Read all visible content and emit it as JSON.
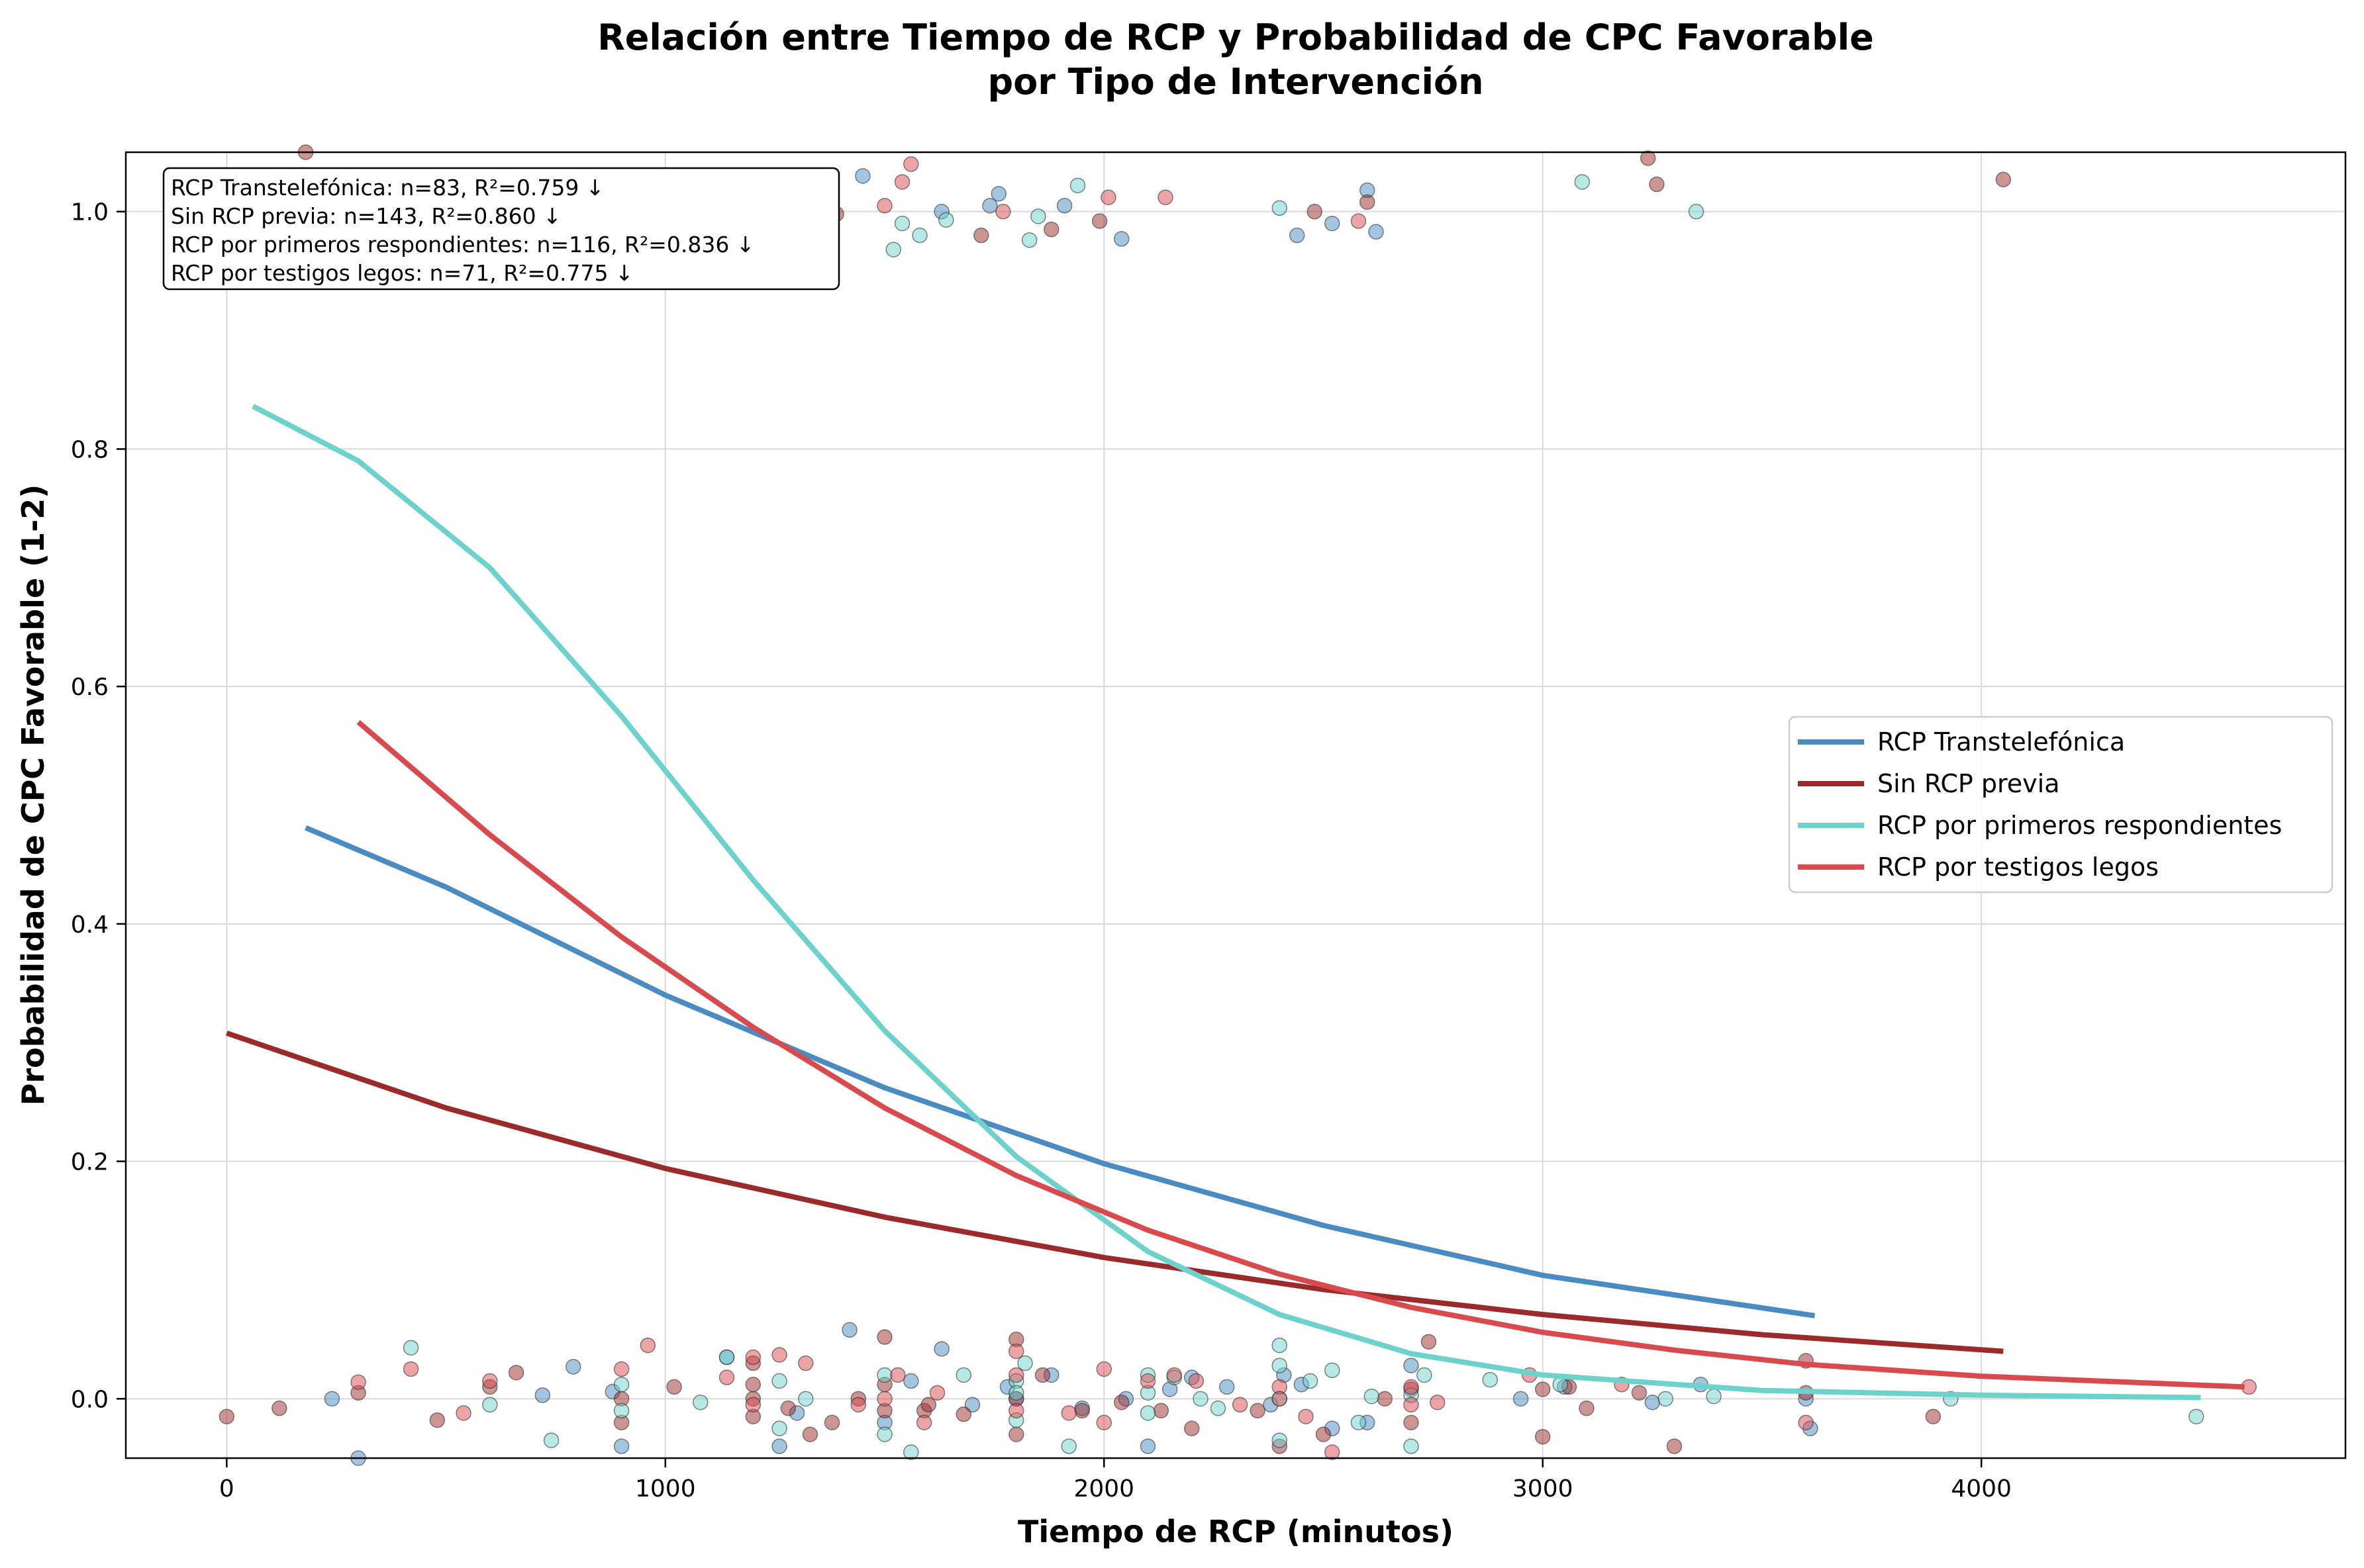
{
  "chart_data": {
    "type": "scatter",
    "title": [
      "Relación entre Tiempo de RCP y Probabilidad de CPC Favorable",
      "por Tipo de Intervención"
    ],
    "xlabel": "Tiempo de RCP (minutos)",
    "ylabel": "Probabilidad de CPC Favorable (1-2)",
    "xlim": [
      -230,
      4830
    ],
    "ylim": [
      -0.05,
      1.05
    ],
    "xticks": [
      0,
      1000,
      2000,
      3000,
      4000
    ],
    "xtick_labels": [
      "0",
      "1000",
      "2000",
      "3000",
      "4000"
    ],
    "yticks": [
      0.0,
      0.2,
      0.4,
      0.6,
      0.8,
      1.0
    ],
    "ytick_labels": [
      "0.0",
      "0.2",
      "0.4",
      "0.6",
      "0.8",
      "1.0"
    ],
    "grid": true,
    "legend_position": "center-right",
    "annotation_box": [
      "RCP Transtelefónica: n=83, R²=0.759 ↓",
      "Sin RCP previa: n=143, R²=0.860 ↓",
      "RCP por primeros respondientes: n=116, R²=0.836 ↓",
      "RCP por testigos legos: n=71, R²=0.775 ↓"
    ],
    "series": [
      {
        "name": "RCP Transtelefónica",
        "color": "#4a8bc2",
        "curve": [
          [
            180,
            0.481
          ],
          [
            500,
            0.431
          ],
          [
            1000,
            0.34
          ],
          [
            1500,
            0.262
          ],
          [
            2000,
            0.198
          ],
          [
            2500,
            0.146
          ],
          [
            3000,
            0.104
          ],
          [
            3620,
            0.07
          ]
        ],
        "points_high": [
          [
            1450,
            1.03
          ],
          [
            1630,
            1.0
          ],
          [
            1740,
            1.005
          ],
          [
            1760,
            1.015
          ],
          [
            1910,
            1.005
          ],
          [
            2040,
            0.977
          ],
          [
            2440,
            0.98
          ],
          [
            2520,
            0.99
          ],
          [
            2600,
            1.018
          ],
          [
            2620,
            0.983
          ],
          [
            900,
            1.0
          ],
          [
            1060,
            1.012
          ]
        ],
        "points_low": [
          [
            240,
            0.0
          ],
          [
            300,
            -0.05
          ],
          [
            720,
            0.003
          ],
          [
            790,
            0.027
          ],
          [
            880,
            0.006
          ],
          [
            900,
            -0.04
          ],
          [
            1140,
            0.035
          ],
          [
            1260,
            -0.04
          ],
          [
            1300,
            -0.012
          ],
          [
            1500,
            -0.02
          ],
          [
            1560,
            0.015
          ],
          [
            1630,
            0.042
          ],
          [
            1700,
            -0.005
          ],
          [
            1780,
            0.01
          ],
          [
            1800,
            0.0
          ],
          [
            1880,
            0.02
          ],
          [
            1950,
            -0.008
          ],
          [
            2050,
            0.0
          ],
          [
            2100,
            -0.04
          ],
          [
            2150,
            0.008
          ],
          [
            2200,
            0.018
          ],
          [
            2280,
            0.01
          ],
          [
            2380,
            -0.005
          ],
          [
            2410,
            0.02
          ],
          [
            2450,
            0.012
          ],
          [
            2520,
            -0.025
          ],
          [
            2700,
            0.028
          ],
          [
            2950,
            0.0
          ],
          [
            3050,
            0.01
          ],
          [
            3250,
            -0.003
          ],
          [
            3360,
            0.012
          ],
          [
            3600,
            0.0
          ],
          [
            3610,
            -0.025
          ],
          [
            1420,
            0.058
          ],
          [
            2600,
            -0.02
          ]
        ]
      },
      {
        "name": "Sin RCP previa",
        "color": "#9b2a2a",
        "curve": [
          [
            0,
            0.308
          ],
          [
            500,
            0.245
          ],
          [
            1000,
            0.194
          ],
          [
            1500,
            0.153
          ],
          [
            2000,
            0.119
          ],
          [
            2500,
            0.092
          ],
          [
            3000,
            0.071
          ],
          [
            3500,
            0.054
          ],
          [
            4050,
            0.04
          ]
        ],
        "points_high": [
          [
            180,
            1.05
          ],
          [
            360,
            1.03
          ],
          [
            600,
            1.03
          ],
          [
            1080,
            1.02
          ],
          [
            1390,
            0.998
          ],
          [
            1720,
            0.98
          ],
          [
            1880,
            0.985
          ],
          [
            1990,
            0.992
          ],
          [
            2480,
            1.0
          ],
          [
            2600,
            1.008
          ],
          [
            3240,
            1.045
          ],
          [
            3260,
            1.023
          ],
          [
            4050,
            1.027
          ]
        ],
        "points_low": [
          [
            0,
            -0.015
          ],
          [
            120,
            -0.008
          ],
          [
            300,
            0.005
          ],
          [
            480,
            -0.018
          ],
          [
            600,
            0.01
          ],
          [
            660,
            0.022
          ],
          [
            900,
            0.0
          ],
          [
            900,
            -0.02
          ],
          [
            1020,
            0.01
          ],
          [
            1200,
            0.0
          ],
          [
            1200,
            -0.015
          ],
          [
            1200,
            0.03
          ],
          [
            1200,
            0.012
          ],
          [
            1280,
            -0.008
          ],
          [
            1330,
            -0.03
          ],
          [
            1380,
            -0.02
          ],
          [
            1500,
            0.012
          ],
          [
            1500,
            -0.01
          ],
          [
            1500,
            0.052
          ],
          [
            1590,
            -0.01
          ],
          [
            1680,
            -0.013
          ],
          [
            1800,
            0.05
          ],
          [
            1800,
            0.0
          ],
          [
            1800,
            -0.03
          ],
          [
            1860,
            0.02
          ],
          [
            1950,
            -0.01
          ],
          [
            2040,
            -0.003
          ],
          [
            2130,
            -0.01
          ],
          [
            2200,
            -0.025
          ],
          [
            2350,
            -0.01
          ],
          [
            2400,
            -0.04
          ],
          [
            2500,
            -0.03
          ],
          [
            2640,
            0.0
          ],
          [
            2700,
            -0.02
          ],
          [
            2700,
            0.008
          ],
          [
            2740,
            0.048
          ],
          [
            3000,
            -0.032
          ],
          [
            3000,
            0.008
          ],
          [
            3060,
            0.01
          ],
          [
            3100,
            -0.008
          ],
          [
            3220,
            0.005
          ],
          [
            3300,
            -0.04
          ],
          [
            3600,
            0.032
          ],
          [
            3600,
            0.005
          ],
          [
            3890,
            -0.015
          ],
          [
            1440,
            0.0
          ],
          [
            1600,
            -0.005
          ]
        ]
      },
      {
        "name": "RCP por primeros respondientes",
        "color": "#6ed2cc",
        "curve": [
          [
            60,
            0.836
          ],
          [
            300,
            0.79
          ],
          [
            600,
            0.7
          ],
          [
            900,
            0.575
          ],
          [
            1200,
            0.437
          ],
          [
            1500,
            0.31
          ],
          [
            1800,
            0.204
          ],
          [
            2100,
            0.124
          ],
          [
            2400,
            0.071
          ],
          [
            2700,
            0.038
          ],
          [
            3000,
            0.02
          ],
          [
            3500,
            0.007
          ],
          [
            4000,
            0.003
          ],
          [
            4500,
            0.001
          ]
        ],
        "points_high": [
          [
            120,
            0.985
          ],
          [
            1080,
            1.01
          ],
          [
            1180,
            0.998
          ],
          [
            1520,
            0.968
          ],
          [
            1540,
            0.99
          ],
          [
            1580,
            0.98
          ],
          [
            1640,
            0.993
          ],
          [
            1830,
            0.976
          ],
          [
            1850,
            0.996
          ],
          [
            1940,
            1.022
          ],
          [
            2400,
            1.003
          ],
          [
            3090,
            1.025
          ],
          [
            3350,
            1.0
          ]
        ],
        "points_low": [
          [
            420,
            0.043
          ],
          [
            600,
            -0.005
          ],
          [
            740,
            -0.035
          ],
          [
            900,
            0.012
          ],
          [
            900,
            -0.01
          ],
          [
            1080,
            -0.003
          ],
          [
            1140,
            0.035
          ],
          [
            1260,
            -0.025
          ],
          [
            1260,
            0.015
          ],
          [
            1320,
            0.0
          ],
          [
            1500,
            0.02
          ],
          [
            1500,
            -0.03
          ],
          [
            1560,
            -0.045
          ],
          [
            1680,
            0.02
          ],
          [
            1800,
            0.015
          ],
          [
            1800,
            -0.018
          ],
          [
            1800,
            0.005
          ],
          [
            1820,
            0.03
          ],
          [
            1920,
            -0.04
          ],
          [
            2100,
            0.02
          ],
          [
            2100,
            0.005
          ],
          [
            2100,
            -0.012
          ],
          [
            2160,
            0.018
          ],
          [
            2220,
            0.0
          ],
          [
            2260,
            -0.008
          ],
          [
            2400,
            0.045
          ],
          [
            2400,
            0.028
          ],
          [
            2400,
            0.0
          ],
          [
            2400,
            -0.035
          ],
          [
            2470,
            0.015
          ],
          [
            2520,
            0.024
          ],
          [
            2580,
            -0.02
          ],
          [
            2610,
            0.002
          ],
          [
            2700,
            0.003
          ],
          [
            2700,
            -0.04
          ],
          [
            2730,
            0.02
          ],
          [
            2880,
            0.016
          ],
          [
            3040,
            0.012
          ],
          [
            3280,
            0.0
          ],
          [
            3390,
            0.002
          ],
          [
            3930,
            0.0
          ],
          [
            4490,
            -0.015
          ]
        ]
      },
      {
        "name": "RCP por testigos legos",
        "color": "#d94a4e",
        "curve": [
          [
            300,
            0.57
          ],
          [
            600,
            0.475
          ],
          [
            900,
            0.389
          ],
          [
            1200,
            0.313
          ],
          [
            1500,
            0.245
          ],
          [
            1800,
            0.188
          ],
          [
            2100,
            0.142
          ],
          [
            2400,
            0.105
          ],
          [
            2700,
            0.077
          ],
          [
            3000,
            0.056
          ],
          [
            3300,
            0.041
          ],
          [
            3600,
            0.029
          ],
          [
            4000,
            0.019
          ],
          [
            4600,
            0.01
          ]
        ],
        "points_high": [
          [
            260,
            1.015
          ],
          [
            1080,
            1.03
          ],
          [
            1150,
            0.998
          ],
          [
            1500,
            1.005
          ],
          [
            1540,
            1.025
          ],
          [
            1560,
            1.04
          ],
          [
            1770,
            1.0
          ],
          [
            2010,
            1.012
          ],
          [
            2140,
            1.012
          ],
          [
            2580,
            0.992
          ]
        ],
        "points_low": [
          [
            300,
            0.014
          ],
          [
            420,
            0.025
          ],
          [
            540,
            -0.012
          ],
          [
            600,
            0.015
          ],
          [
            900,
            0.025
          ],
          [
            960,
            0.045
          ],
          [
            1140,
            0.018
          ],
          [
            1200,
            0.035
          ],
          [
            1200,
            -0.005
          ],
          [
            1260,
            0.037
          ],
          [
            1320,
            0.03
          ],
          [
            1440,
            -0.005
          ],
          [
            1500,
            0.0
          ],
          [
            1530,
            0.02
          ],
          [
            1590,
            -0.02
          ],
          [
            1620,
            0.005
          ],
          [
            1800,
            0.04
          ],
          [
            1800,
            -0.01
          ],
          [
            1800,
            0.02
          ],
          [
            1920,
            -0.012
          ],
          [
            2000,
            0.025
          ],
          [
            2000,
            -0.02
          ],
          [
            2100,
            0.015
          ],
          [
            2160,
            0.02
          ],
          [
            2210,
            0.015
          ],
          [
            2310,
            -0.005
          ],
          [
            2400,
            0.01
          ],
          [
            2400,
            0.0
          ],
          [
            2460,
            -0.015
          ],
          [
            2520,
            -0.045
          ],
          [
            2700,
            0.01
          ],
          [
            2700,
            -0.005
          ],
          [
            2760,
            -0.003
          ],
          [
            2970,
            0.02
          ],
          [
            3180,
            0.012
          ],
          [
            3600,
            -0.02
          ],
          [
            4610,
            0.01
          ]
        ]
      }
    ]
  }
}
